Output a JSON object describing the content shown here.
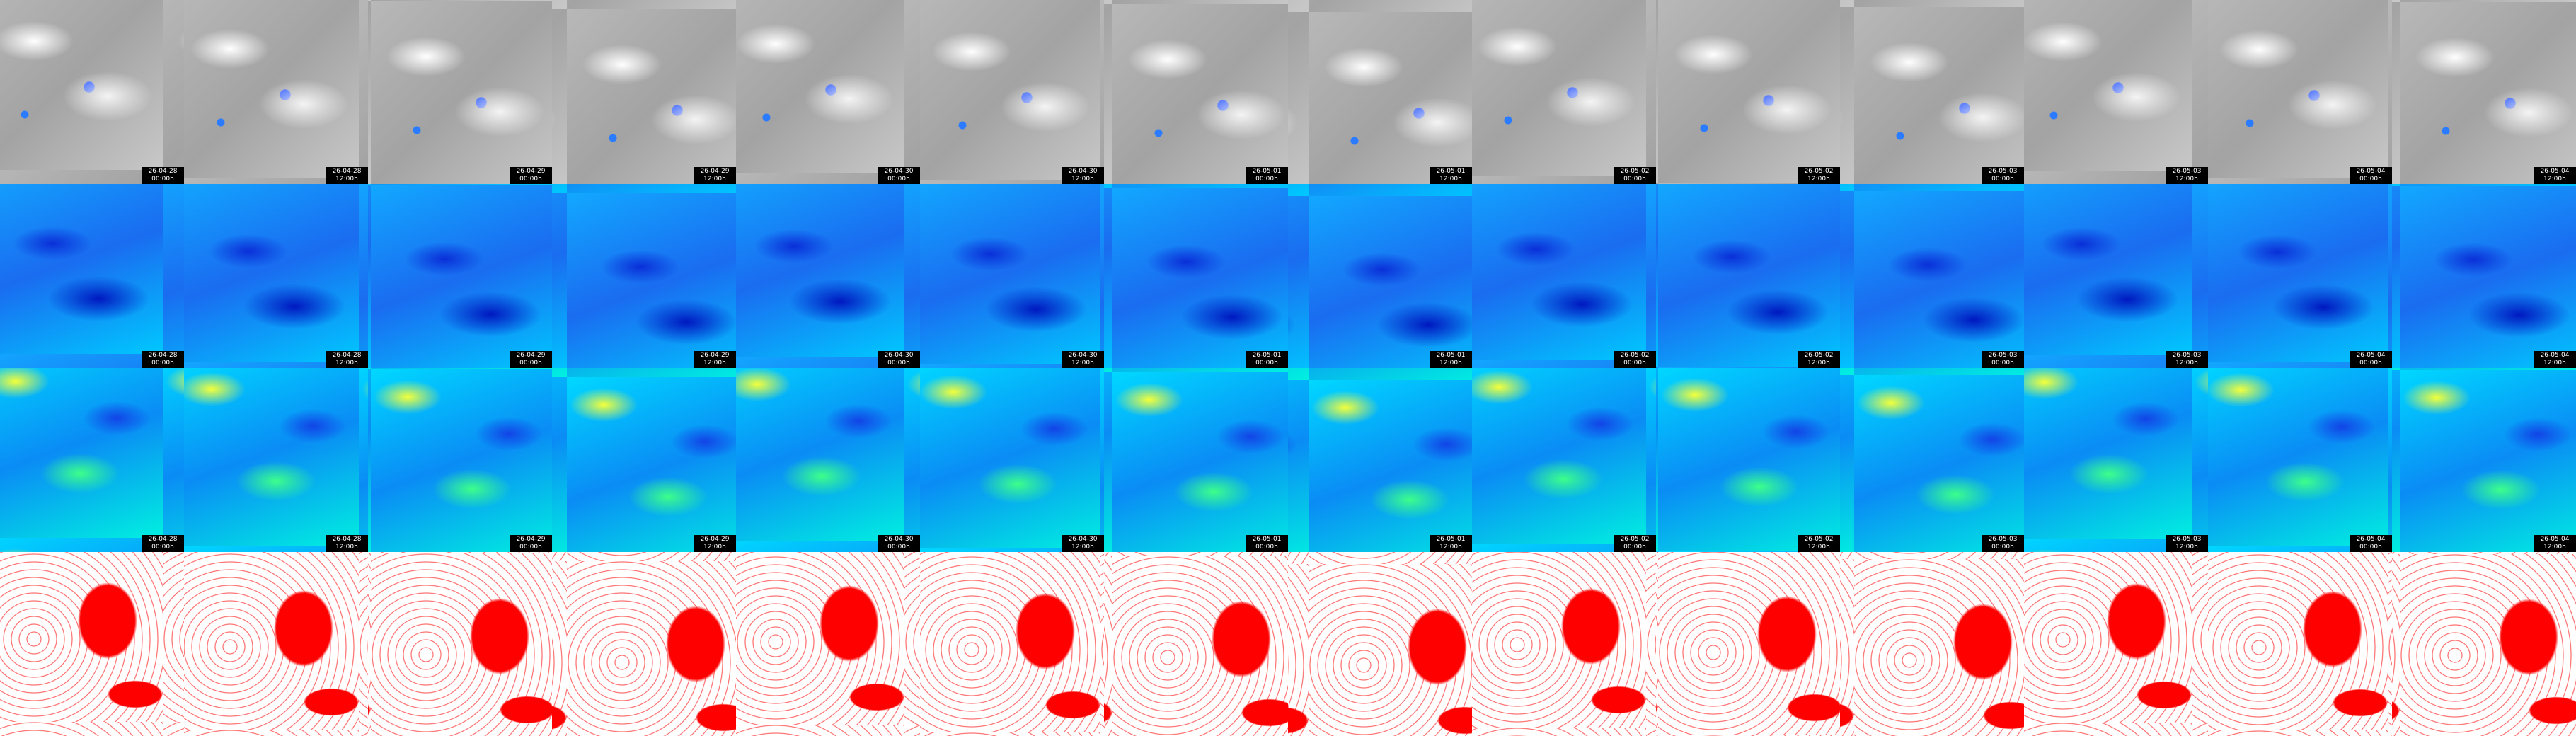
{
  "rows": [
    {
      "cells": [
        {
          "date": "26-04-28",
          "time": "00:00h"
        },
        {
          "date": "26-04-28",
          "time": "12:00h"
        },
        {
          "date": "26-04-29",
          "time": "00:00h"
        },
        {
          "date": "26-04-29",
          "time": "12:00h"
        },
        {
          "date": "26-04-30",
          "time": "00:00h"
        },
        {
          "date": "26-04-30",
          "time": "12:00h"
        },
        {
          "date": "26-05-01",
          "time": "00:00h"
        },
        {
          "date": "26-05-01",
          "time": "12:00h"
        },
        {
          "date": "26-05-02",
          "time": "00:00h"
        },
        {
          "date": "26-05-02",
          "time": "12:00h"
        },
        {
          "date": "26-05-03",
          "time": "00:00h"
        },
        {
          "date": "26-05-03",
          "time": "12:00h"
        },
        {
          "date": "26-05-04",
          "time": "00:00h"
        },
        {
          "date": "26-05-04",
          "time": "12:00h"
        }
      ]
    },
    {
      "cells": [
        {
          "date": "26-04-28",
          "time": "00:00h"
        },
        {
          "date": "26-04-28",
          "time": "12:00h"
        },
        {
          "date": "26-04-29",
          "time": "00:00h"
        },
        {
          "date": "26-04-29",
          "time": "12:00h"
        },
        {
          "date": "26-04-30",
          "time": "00:00h"
        },
        {
          "date": "26-04-30",
          "time": "12:00h"
        },
        {
          "date": "26-05-01",
          "time": "00:00h"
        },
        {
          "date": "26-05-01",
          "time": "12:00h"
        },
        {
          "date": "26-05-02",
          "time": "00:00h"
        },
        {
          "date": "26-05-02",
          "time": "12:00h"
        },
        {
          "date": "26-05-03",
          "time": "00:00h"
        },
        {
          "date": "26-05-03",
          "time": "12:00h"
        },
        {
          "date": "26-05-04",
          "time": "00:00h"
        },
        {
          "date": "26-05-04",
          "time": "12:00h"
        }
      ]
    },
    {
      "cells": [
        {
          "date": "26-04-28",
          "time": "00:00h"
        },
        {
          "date": "26-04-28",
          "time": "12:00h"
        },
        {
          "date": "26-04-29",
          "time": "00:00h"
        },
        {
          "date": "26-04-29",
          "time": "12:00h"
        },
        {
          "date": "26-04-30",
          "time": "00:00h"
        },
        {
          "date": "26-04-30",
          "time": "12:00h"
        },
        {
          "date": "26-05-01",
          "time": "00:00h"
        },
        {
          "date": "26-05-01",
          "time": "12:00h"
        },
        {
          "date": "26-05-02",
          "time": "00:00h"
        },
        {
          "date": "26-05-02",
          "time": "12:00h"
        },
        {
          "date": "26-05-03",
          "time": "00:00h"
        },
        {
          "date": "26-05-03",
          "time": "12:00h"
        },
        {
          "date": "26-05-04",
          "time": "00:00h"
        },
        {
          "date": "26-05-04",
          "time": "12:00h"
        }
      ]
    }
  ]
}
